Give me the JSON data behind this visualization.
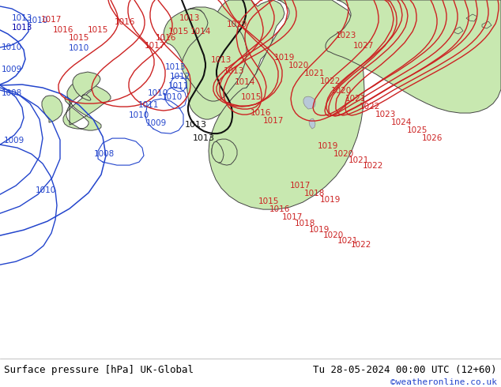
{
  "title_left": "Surface pressure [hPa] UK-Global",
  "title_right": "Tu 28-05-2024 00:00 UTC (12+60)",
  "credit": "©weatheronline.co.uk",
  "sea_color": "#d8dde8",
  "land_color": "#c8e8b0",
  "land_edge": "#444444",
  "blue_isobar": "#2244cc",
  "black_isobar": "#111111",
  "red_isobar": "#cc2222",
  "bottom_bar": "#ffffff",
  "figsize": [
    6.34,
    4.9
  ],
  "dpi": 100
}
